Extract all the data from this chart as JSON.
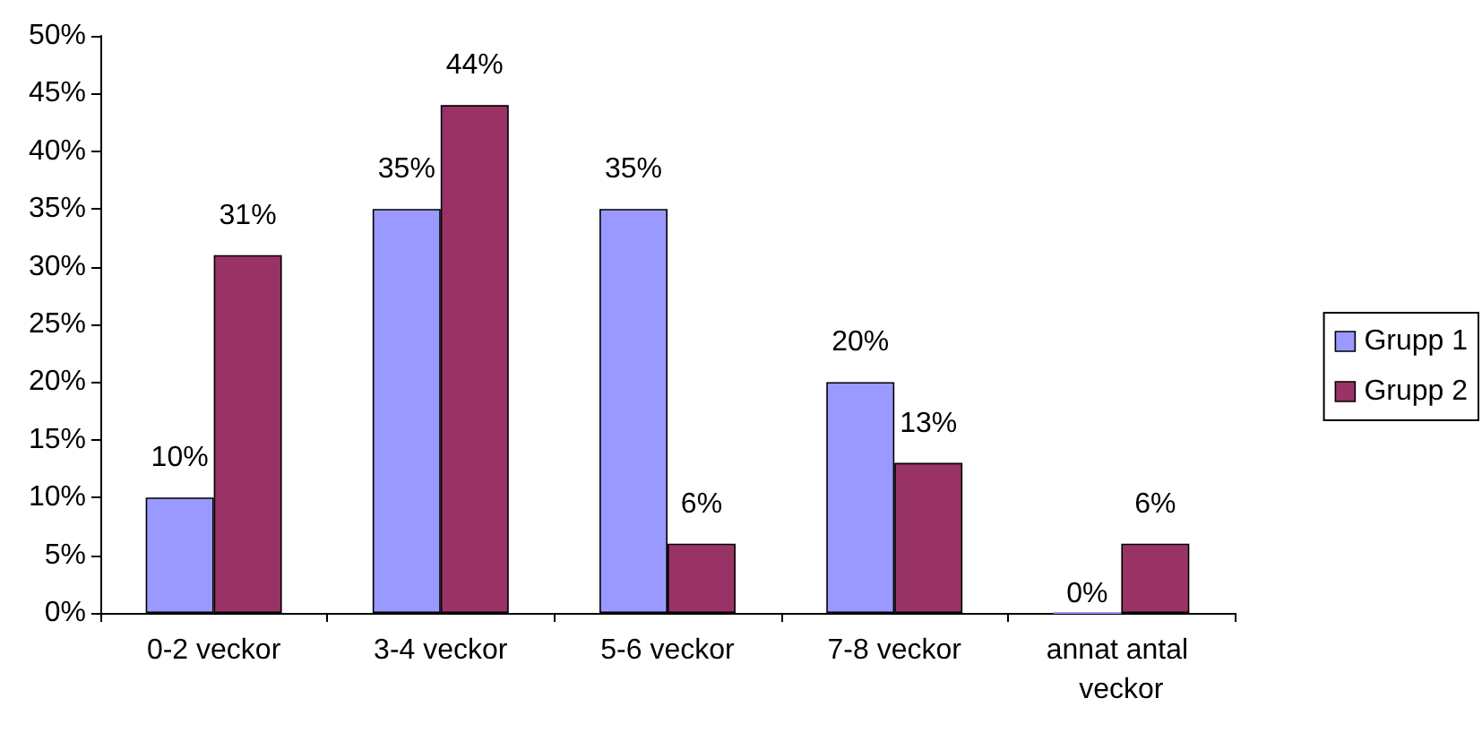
{
  "chart_data": {
    "type": "bar",
    "categories": [
      "0-2 veckor",
      "3-4 veckor",
      "5-6 veckor",
      "7-8 veckor",
      "annat antal veckor"
    ],
    "series": [
      {
        "name": "Grupp 1",
        "color": "#9999ff",
        "values": [
          10,
          35,
          35,
          20,
          0
        ],
        "value_labels": [
          "10%",
          "35%",
          "35%",
          "20%",
          "0%"
        ]
      },
      {
        "name": "Grupp 2",
        "color": "#993366",
        "values": [
          31,
          44,
          6,
          13,
          6
        ],
        "value_labels": [
          "31%",
          "44%",
          "6%",
          "13%",
          "6%"
        ]
      }
    ],
    "ylim": [
      0,
      50
    ],
    "yticks": [
      {
        "value": 0,
        "label": "0%"
      },
      {
        "value": 5,
        "label": "5%"
      },
      {
        "value": 10,
        "label": "10%"
      },
      {
        "value": 15,
        "label": "15%"
      },
      {
        "value": 20,
        "label": "20%"
      },
      {
        "value": 25,
        "label": "25%"
      },
      {
        "value": 30,
        "label": "30%"
      },
      {
        "value": 35,
        "label": "35%"
      },
      {
        "value": 40,
        "label": "40%"
      },
      {
        "value": 45,
        "label": "45%"
      },
      {
        "value": 50,
        "label": "50%"
      }
    ],
    "grid": false,
    "legend": "right"
  }
}
